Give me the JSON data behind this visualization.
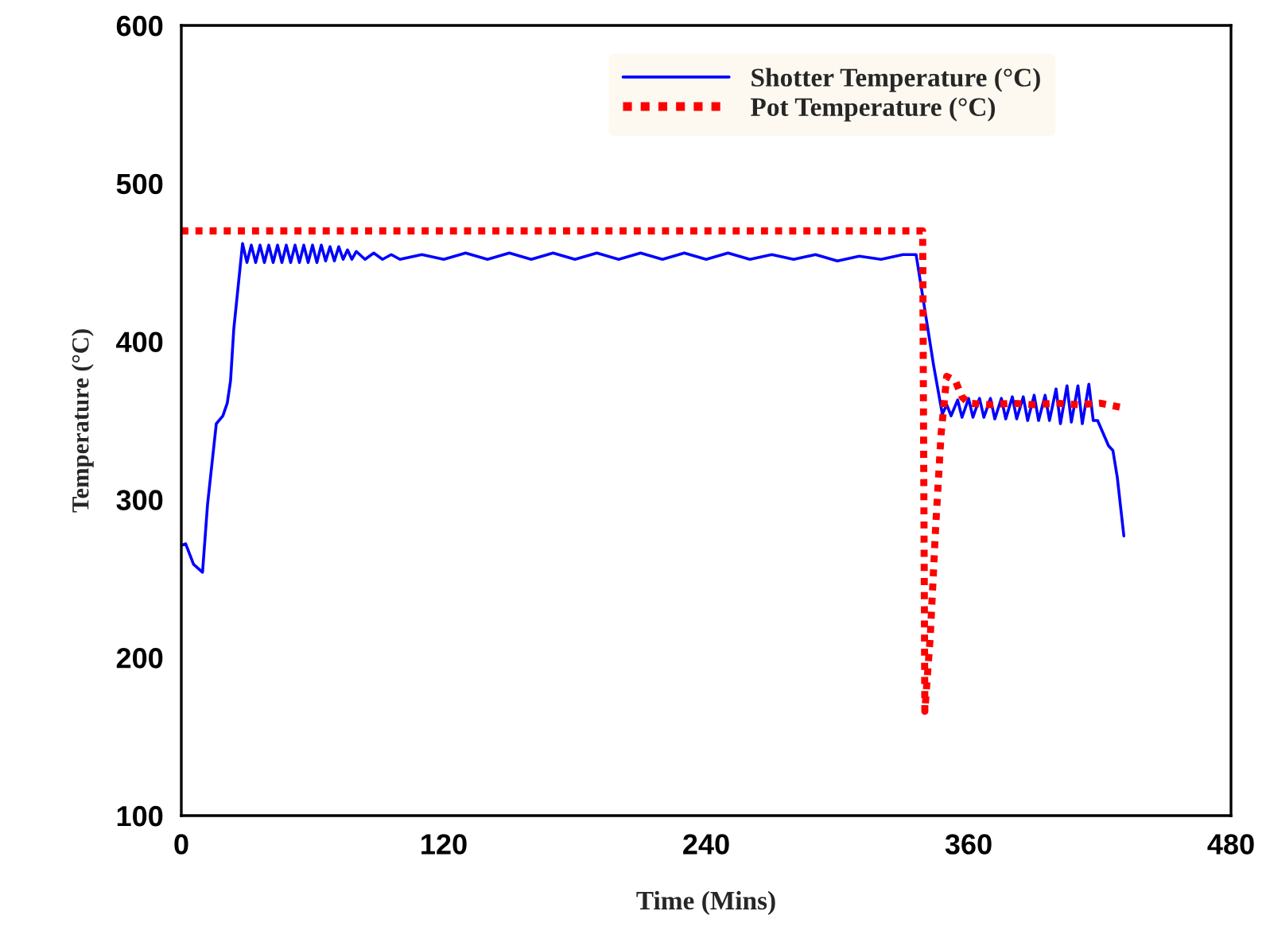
{
  "chart_data": {
    "type": "line",
    "xlabel": "Time (Mins)",
    "ylabel": "Temperature (°C)",
    "xlim": [
      0,
      480
    ],
    "xticks": [
      0,
      120,
      240,
      360,
      480
    ],
    "ylim": [
      100,
      600
    ],
    "yticks": [
      100,
      200,
      300,
      400,
      500,
      600
    ],
    "grid": false,
    "legend": "top",
    "marker": "none",
    "series": [
      {
        "name": "Shotter Temperature (°C)",
        "color": "#0000ff",
        "line_style": "solid",
        "x": [
          0,
          2,
          5.6,
          9.7,
          12,
          16,
          19,
          21,
          22.5,
          24,
          28,
          30,
          32,
          34,
          36,
          38,
          40,
          42,
          44,
          46,
          48,
          50,
          52,
          54,
          56,
          58,
          60,
          62,
          64,
          66,
          68,
          70,
          72,
          74,
          76,
          78,
          80,
          84,
          88,
          92,
          96,
          100,
          110,
          120,
          130,
          140,
          150,
          160,
          170,
          180,
          190,
          200,
          210,
          220,
          230,
          240,
          250,
          260,
          270,
          280,
          290,
          300,
          310,
          320,
          330,
          336,
          340,
          344,
          348,
          350,
          352,
          355,
          357,
          360,
          362,
          365,
          367,
          370,
          372,
          375,
          377,
          380,
          382,
          385,
          387,
          390,
          392,
          395,
          397,
          400,
          402,
          405,
          407,
          410,
          412,
          415,
          417,
          419,
          424,
          426,
          428,
          431
        ],
        "values": [
          271,
          272,
          259,
          254,
          297,
          348,
          353,
          361,
          375,
          408,
          462,
          450,
          461,
          450,
          461,
          450,
          461,
          450,
          461,
          450,
          461,
          450,
          461,
          450,
          461,
          450,
          461,
          450,
          461,
          451,
          460,
          451,
          460,
          452,
          458,
          452,
          457,
          452,
          456,
          452,
          455,
          452,
          455,
          452,
          456,
          452,
          456,
          452,
          456,
          452,
          456,
          452,
          456,
          452,
          456,
          452,
          456,
          452,
          455,
          452,
          455,
          451,
          454,
          452,
          455,
          455,
          420,
          385,
          354,
          360,
          353,
          363,
          352,
          364,
          352,
          364,
          352,
          364,
          351,
          364,
          351,
          365,
          351,
          365,
          350,
          366,
          350,
          366,
          350,
          370,
          348,
          372,
          349,
          372,
          348,
          373,
          350,
          350,
          334,
          331,
          314,
          277
        ]
      },
      {
        "name": "Pot Temperature (°C)",
        "color": "#ff0000",
        "line_style": "dashed",
        "x": [
          0,
          339,
          340,
          342.5,
          345,
          347.4,
          350,
          354,
          357,
          360,
          370,
          380,
          390,
          400,
          410,
          420,
          431
        ],
        "values": [
          470,
          470,
          166,
          214,
          284,
          341,
          378,
          375,
          365,
          361,
          360,
          361,
          360,
          361,
          360,
          361,
          358
        ]
      }
    ]
  }
}
